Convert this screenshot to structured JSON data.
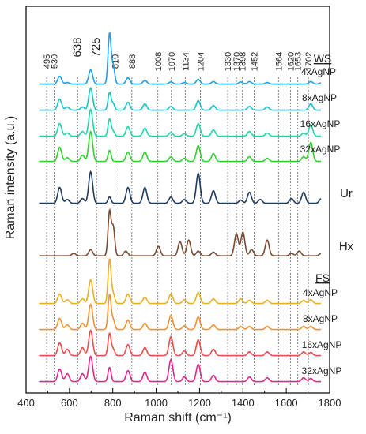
{
  "chart_data": {
    "type": "line",
    "xlabel": "Raman shift (cm⁻¹)",
    "ylabel": "Raman intensity (a.u.)",
    "xlim": [
      400,
      1800
    ],
    "xticks": [
      400,
      600,
      800,
      1000,
      1200,
      1400,
      1600,
      1800
    ],
    "grid": false,
    "peak_markers": [
      495,
      530,
      638,
      725,
      810,
      888,
      1008,
      1070,
      1134,
      1204,
      1330,
      1370,
      1398,
      1452,
      1564,
      1620,
      1653,
      1702
    ],
    "groups": [
      {
        "label": "WS",
        "series_index_start": 0
      },
      {
        "label": "FS",
        "series_index_start": 6
      }
    ],
    "series": [
      {
        "name": "4xAgNP",
        "group": "WS",
        "color": "#1ba1e2",
        "baseline": 0.01,
        "peaks": [
          [
            495,
            0.25
          ],
          [
            530,
            0.05
          ],
          [
            638,
            0.45
          ],
          [
            725,
            1.6
          ],
          [
            742,
            0.55
          ],
          [
            810,
            0.2
          ],
          [
            888,
            0.12
          ],
          [
            1008,
            0.07
          ],
          [
            1070,
            0.05
          ],
          [
            1134,
            0.15
          ],
          [
            1204,
            0.08
          ],
          [
            1330,
            0.07
          ],
          [
            1370,
            0.08
          ],
          [
            1452,
            0.05
          ],
          [
            1653,
            0.08
          ],
          [
            1702,
            0.04
          ]
        ]
      },
      {
        "name": "8xAgNP",
        "group": "WS",
        "color": "#17c3c9",
        "baseline": 0.01,
        "peaks": [
          [
            495,
            0.35
          ],
          [
            530,
            0.1
          ],
          [
            600,
            0.1
          ],
          [
            638,
            0.7
          ],
          [
            725,
            0.55
          ],
          [
            742,
            0.2
          ],
          [
            810,
            0.25
          ],
          [
            888,
            0.2
          ],
          [
            1008,
            0.12
          ],
          [
            1134,
            0.3
          ],
          [
            1204,
            0.15
          ],
          [
            1370,
            0.12
          ],
          [
            1452,
            0.1
          ],
          [
            1653,
            0.2
          ]
        ]
      },
      {
        "name": "16xAgNP",
        "group": "WS",
        "color": "#1ed6a8",
        "baseline": 0.01,
        "peaks": [
          [
            495,
            0.4
          ],
          [
            530,
            0.1
          ],
          [
            600,
            0.15
          ],
          [
            638,
            0.85
          ],
          [
            725,
            0.55
          ],
          [
            742,
            0.15
          ],
          [
            810,
            0.3
          ],
          [
            888,
            0.25
          ],
          [
            1008,
            0.12
          ],
          [
            1070,
            0.08
          ],
          [
            1134,
            0.4
          ],
          [
            1204,
            0.2
          ],
          [
            1370,
            0.15
          ],
          [
            1452,
            0.1
          ],
          [
            1620,
            0.1
          ],
          [
            1653,
            0.35
          ]
        ]
      },
      {
        "name": "32xAgNP",
        "group": "WS",
        "color": "#2ed32e",
        "baseline": 0.01,
        "peaks": [
          [
            495,
            0.45
          ],
          [
            530,
            0.12
          ],
          [
            600,
            0.2
          ],
          [
            638,
            0.95
          ],
          [
            725,
            0.35
          ],
          [
            810,
            0.3
          ],
          [
            888,
            0.3
          ],
          [
            1008,
            0.15
          ],
          [
            1070,
            0.1
          ],
          [
            1134,
            0.5
          ],
          [
            1204,
            0.25
          ],
          [
            1370,
            0.15
          ],
          [
            1452,
            0.1
          ],
          [
            1620,
            0.15
          ],
          [
            1653,
            0.6
          ]
        ]
      },
      {
        "name": "Ur",
        "group": "",
        "color": "#1f3b5c",
        "baseline": 0.01,
        "peaks": [
          [
            495,
            0.5
          ],
          [
            530,
            0.12
          ],
          [
            600,
            0.15
          ],
          [
            638,
            1.0
          ],
          [
            725,
            0.2
          ],
          [
            810,
            0.5
          ],
          [
            888,
            0.5
          ],
          [
            1008,
            0.2
          ],
          [
            1070,
            0.12
          ],
          [
            1134,
            0.95
          ],
          [
            1204,
            0.4
          ],
          [
            1330,
            0.1
          ],
          [
            1370,
            0.35
          ],
          [
            1420,
            0.12
          ],
          [
            1564,
            0.15
          ],
          [
            1620,
            0.35
          ],
          [
            1702,
            0.15
          ]
        ]
      },
      {
        "name": "Hx",
        "group": "",
        "color": "#7a4a30",
        "baseline": 0.02,
        "peaks": [
          [
            560,
            0.08
          ],
          [
            638,
            0.2
          ],
          [
            725,
            1.4
          ],
          [
            742,
            0.9
          ],
          [
            800,
            0.15
          ],
          [
            950,
            0.3
          ],
          [
            1050,
            0.45
          ],
          [
            1090,
            0.5
          ],
          [
            1134,
            0.15
          ],
          [
            1204,
            0.12
          ],
          [
            1310,
            0.7
          ],
          [
            1340,
            0.75
          ],
          [
            1380,
            0.2
          ],
          [
            1452,
            0.5
          ],
          [
            1564,
            0.08
          ],
          [
            1600,
            0.15
          ],
          [
            1702,
            0.08
          ]
        ]
      },
      {
        "name": "4xAgNP",
        "group": "FS",
        "color": "#e8b020",
        "baseline": 0.01,
        "peaks": [
          [
            495,
            0.3
          ],
          [
            530,
            0.12
          ],
          [
            600,
            0.15
          ],
          [
            638,
            0.75
          ],
          [
            725,
            1.4
          ],
          [
            742,
            0.3
          ],
          [
            810,
            0.3
          ],
          [
            888,
            0.2
          ],
          [
            1008,
            0.3
          ],
          [
            1070,
            0.12
          ],
          [
            1134,
            0.35
          ],
          [
            1204,
            0.15
          ],
          [
            1330,
            0.15
          ],
          [
            1370,
            0.1
          ],
          [
            1452,
            0.1
          ],
          [
            1620,
            0.1
          ],
          [
            1653,
            0.12
          ]
        ]
      },
      {
        "name": "8xAgNP",
        "group": "FS",
        "color": "#f29030",
        "baseline": 0.01,
        "peaks": [
          [
            495,
            0.35
          ],
          [
            530,
            0.15
          ],
          [
            600,
            0.2
          ],
          [
            638,
            0.8
          ],
          [
            725,
            1.1
          ],
          [
            742,
            0.3
          ],
          [
            810,
            0.3
          ],
          [
            888,
            0.2
          ],
          [
            1008,
            0.45
          ],
          [
            1070,
            0.12
          ],
          [
            1134,
            0.4
          ],
          [
            1204,
            0.15
          ],
          [
            1330,
            0.1
          ],
          [
            1370,
            0.1
          ],
          [
            1452,
            0.1
          ],
          [
            1620,
            0.1
          ],
          [
            1653,
            0.1
          ]
        ]
      },
      {
        "name": "16xAgNP",
        "group": "FS",
        "color": "#f04a4a",
        "baseline": 0.01,
        "peaks": [
          [
            495,
            0.4
          ],
          [
            530,
            0.2
          ],
          [
            600,
            0.25
          ],
          [
            638,
            0.8
          ],
          [
            725,
            0.7
          ],
          [
            742,
            0.2
          ],
          [
            810,
            0.35
          ],
          [
            888,
            0.25
          ],
          [
            1008,
            0.6
          ],
          [
            1070,
            0.15
          ],
          [
            1134,
            0.5
          ],
          [
            1204,
            0.2
          ],
          [
            1370,
            0.12
          ],
          [
            1452,
            0.12
          ],
          [
            1620,
            0.12
          ],
          [
            1653,
            0.1
          ]
        ]
      },
      {
        "name": "32xAgNP",
        "group": "FS",
        "color": "#e6248a",
        "baseline": 0.01,
        "peaks": [
          [
            495,
            0.4
          ],
          [
            530,
            0.25
          ],
          [
            600,
            0.25
          ],
          [
            638,
            0.8
          ],
          [
            725,
            0.45
          ],
          [
            810,
            0.35
          ],
          [
            888,
            0.3
          ],
          [
            1008,
            0.7
          ],
          [
            1070,
            0.15
          ],
          [
            1134,
            0.55
          ],
          [
            1204,
            0.2
          ],
          [
            1370,
            0.15
          ],
          [
            1452,
            0.12
          ],
          [
            1620,
            0.12
          ],
          [
            1653,
            0.1
          ]
        ]
      }
    ]
  }
}
